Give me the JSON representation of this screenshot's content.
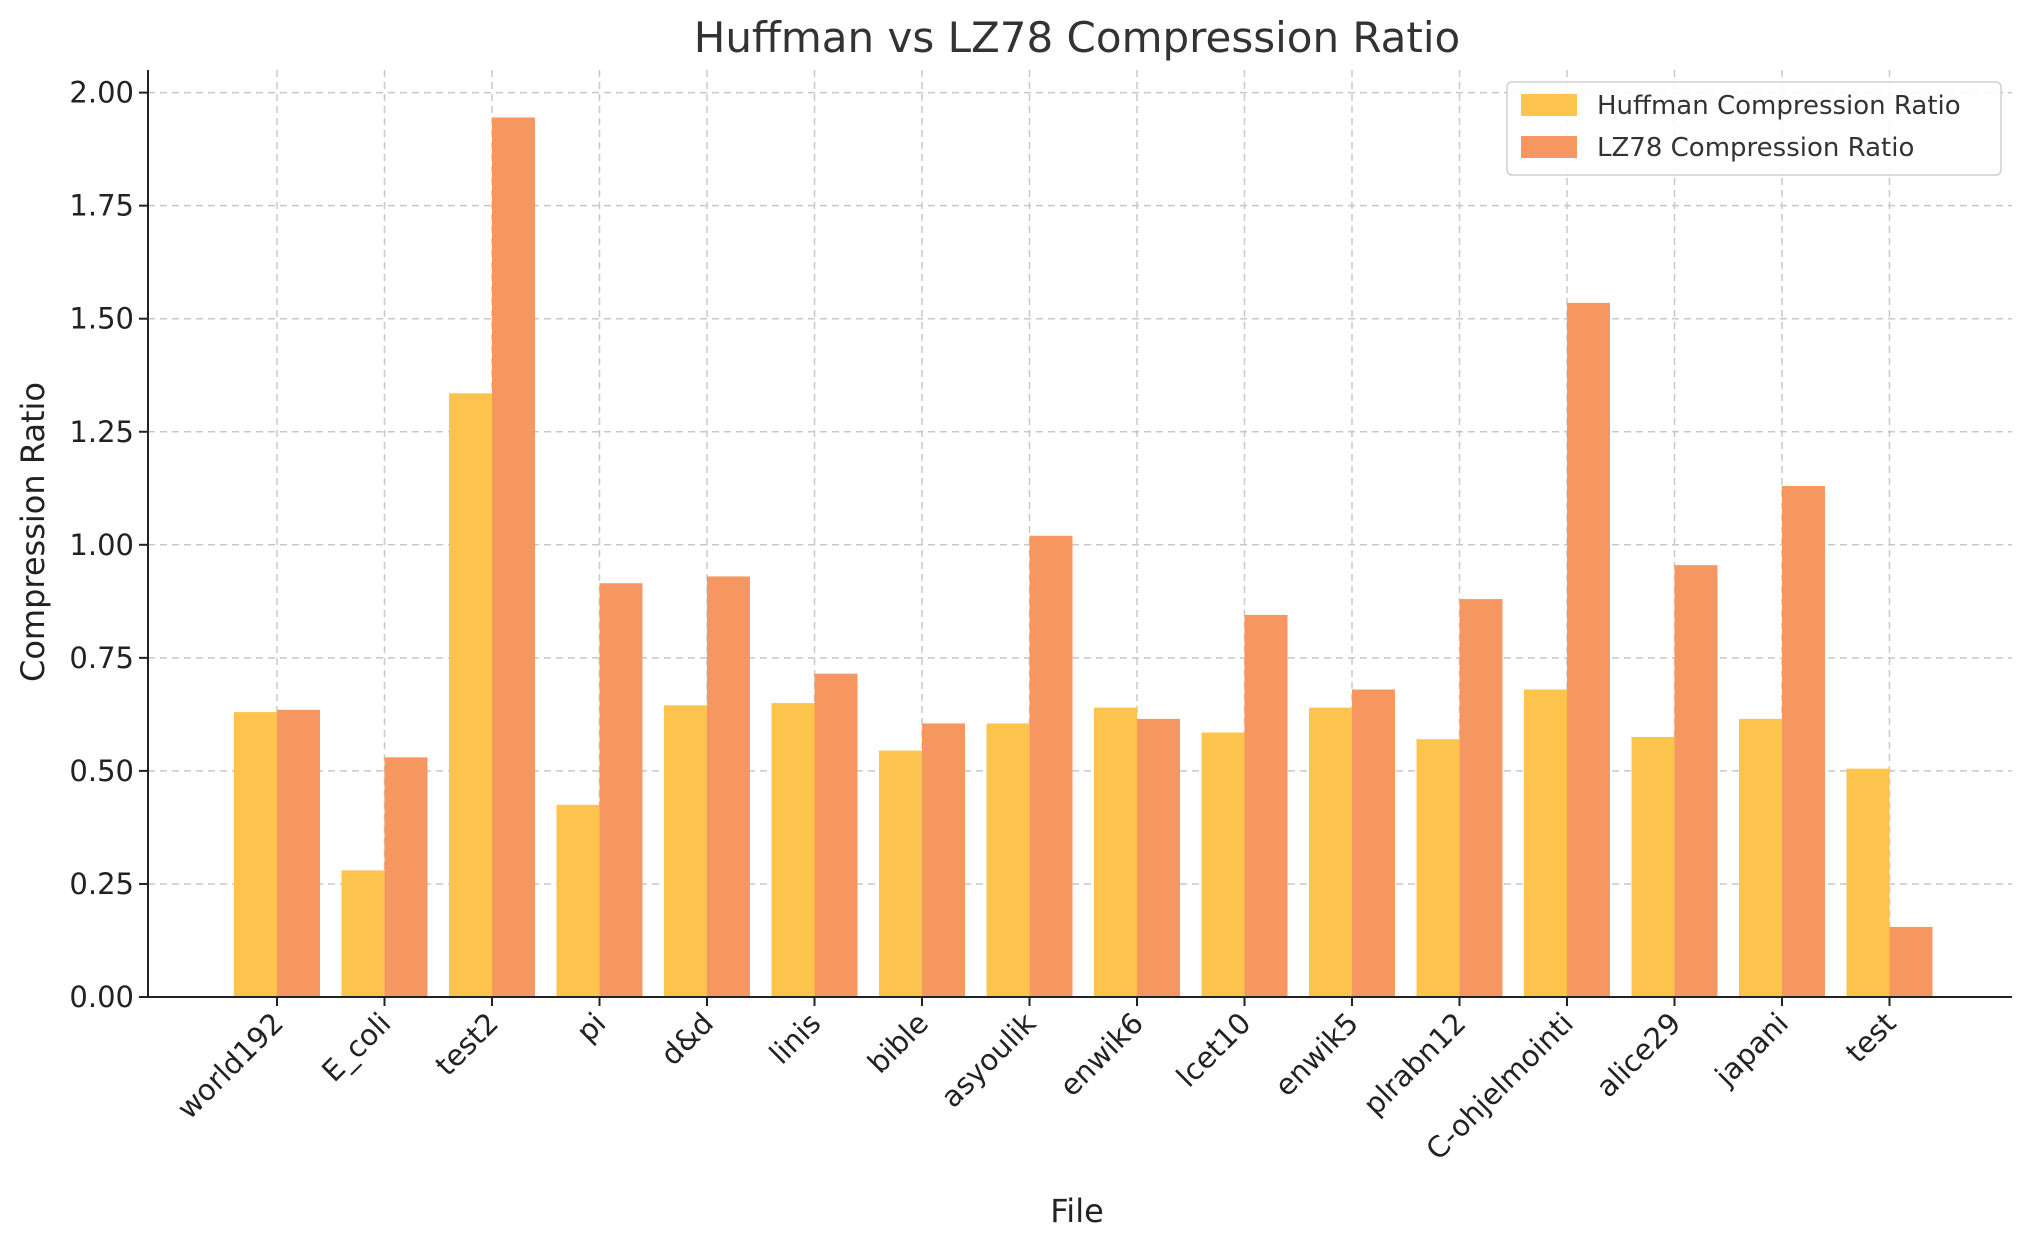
{
  "chart_data": {
    "type": "bar",
    "title": "Huffman vs LZ78 Compression Ratio",
    "xlabel": "File",
    "ylabel": "Compression Ratio",
    "ylim": [
      0,
      2.05
    ],
    "yticks": [
      "0.00",
      "0.25",
      "0.50",
      "0.75",
      "1.00",
      "1.25",
      "1.50",
      "1.75",
      "2.00"
    ],
    "grid": true,
    "legend_position": "top-right",
    "categories": [
      "world192",
      "E_coli",
      "test2",
      "pi",
      "d&d",
      "linis",
      "bible",
      "asyoulik",
      "enwik6",
      "lcet10",
      "enwik5",
      "plrabn12",
      "C-ohjelmointi",
      "alice29",
      "japani",
      "test"
    ],
    "series": [
      {
        "name": "Huffman Compression Ratio",
        "color": "#fcc44d",
        "values": [
          0.63,
          0.28,
          1.335,
          0.425,
          0.645,
          0.65,
          0.545,
          0.605,
          0.64,
          0.585,
          0.64,
          0.57,
          0.68,
          0.575,
          0.615,
          0.505
        ]
      },
      {
        "name": "LZ78 Compression Ratio",
        "color": "#f69762",
        "values": [
          0.635,
          0.53,
          1.945,
          0.915,
          0.93,
          0.715,
          0.605,
          1.02,
          0.615,
          0.845,
          0.68,
          0.88,
          1.535,
          0.955,
          1.13,
          0.155
        ]
      }
    ]
  }
}
